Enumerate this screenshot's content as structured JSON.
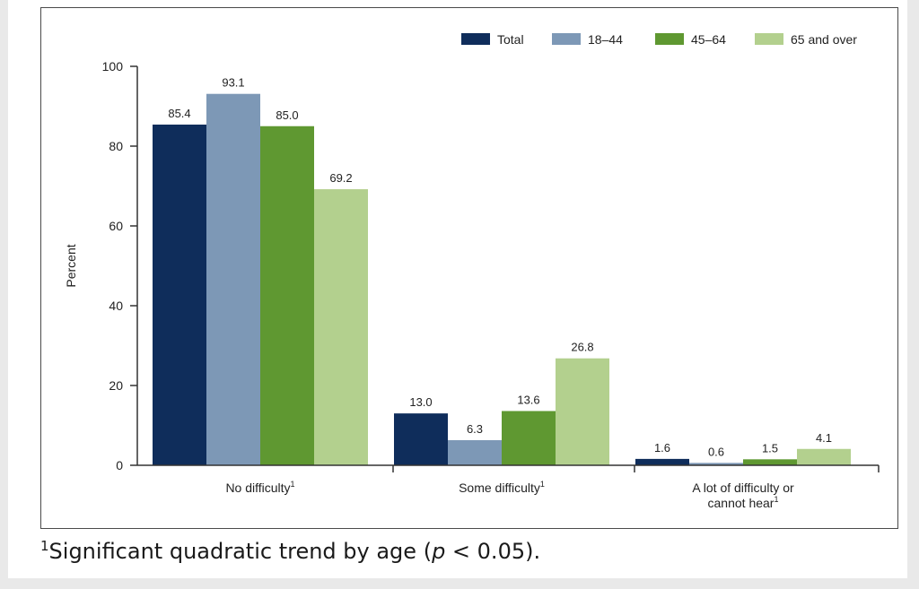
{
  "chart_data": {
    "type": "bar",
    "title": "",
    "xlabel": "",
    "ylabel": "Percent",
    "ylim": [
      0,
      100
    ],
    "yticks": [
      "0",
      "20",
      "40",
      "60",
      "80",
      "100"
    ],
    "categories": [
      {
        "lines": [
          "No difficulty"
        ],
        "sup": "1"
      },
      {
        "lines": [
          "Some difficulty"
        ],
        "sup": "1"
      },
      {
        "lines": [
          "A lot of difficulty or",
          "cannot hear"
        ],
        "sup": "1"
      }
    ],
    "series": [
      {
        "name": "Total",
        "color": "#0f2d5b",
        "values": [
          85.4,
          13.0,
          1.6
        ],
        "labels": [
          "85.4",
          "13.0",
          "1.6"
        ]
      },
      {
        "name": "18–44",
        "color": "#7d98b6",
        "values": [
          93.1,
          6.3,
          0.6
        ],
        "labels": [
          "93.1",
          "6.3",
          "0.6"
        ]
      },
      {
        "name": "45–64",
        "color": "#5f9831",
        "values": [
          85.0,
          13.6,
          1.5
        ],
        "labels": [
          "85.0",
          "13.6",
          "1.5"
        ]
      },
      {
        "name": "65 and over",
        "color": "#b3d08e",
        "values": [
          69.2,
          26.8,
          4.1
        ],
        "labels": [
          "69.2",
          "26.8",
          "4.1"
        ]
      }
    ],
    "legend": "top-right",
    "grid": false
  },
  "footnote": {
    "marker": "1",
    "text_before": "Significant quadratic trend by age (",
    "p_symbol": "p",
    "text_after": " < 0.05)."
  }
}
